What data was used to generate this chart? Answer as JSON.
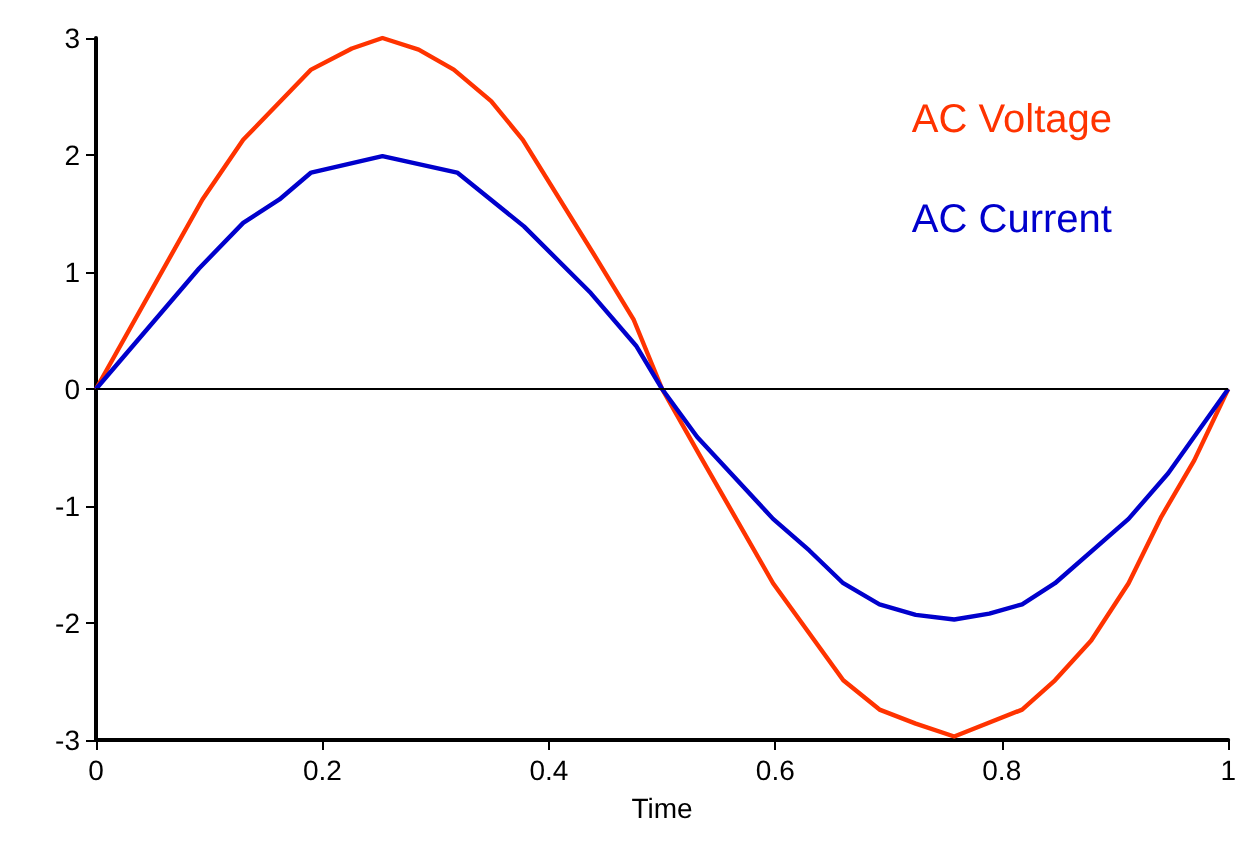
{
  "chart_data": {
    "type": "line",
    "xlabel": "Time",
    "xlim": [
      0,
      1
    ],
    "xticks": [
      0,
      0.2,
      0.4,
      0.6,
      0.8,
      1
    ],
    "ylim": [
      -3,
      3
    ],
    "yticks": [
      -3,
      -2,
      -1,
      0,
      1,
      2,
      3
    ],
    "grid": false,
    "legend": "top right",
    "marker": "none",
    "line_style": "solid",
    "ref_lines": [
      {
        "axis": "y",
        "value": 0,
        "color": "#000000"
      }
    ],
    "series": [
      {
        "name": "AC Voltage",
        "color": "#ff3300",
        "x": [
          0,
          0.094,
          0.13,
          0.19,
          0.226,
          0.253,
          0.285,
          0.316,
          0.349,
          0.377,
          0.443,
          0.475,
          0.5,
          0.534,
          0.598,
          0.66,
          0.692,
          0.724,
          0.758,
          0.818,
          0.847,
          0.879,
          0.912,
          0.941,
          0.97,
          1
        ],
        "values": [
          0,
          1.62,
          2.13,
          2.73,
          2.91,
          3,
          2.9,
          2.73,
          2.46,
          2.13,
          1.1,
          0.59,
          0,
          -0.58,
          -1.66,
          -2.49,
          -2.74,
          -2.86,
          -2.97,
          -2.74,
          -2.49,
          -2.15,
          -1.66,
          -1.09,
          -0.61,
          0
        ]
      },
      {
        "name": "AC Current",
        "color": "#0000cc",
        "x": [
          0,
          0.091,
          0.13,
          0.162,
          0.19,
          0.253,
          0.319,
          0.378,
          0.437,
          0.477,
          0.5,
          0.531,
          0.598,
          0.63,
          0.66,
          0.692,
          0.724,
          0.758,
          0.789,
          0.818,
          0.847,
          0.912,
          0.947,
          1
        ],
        "values": [
          0,
          1.03,
          1.42,
          1.62,
          1.85,
          1.99,
          1.85,
          1.39,
          0.82,
          0.37,
          0,
          -0.41,
          -1.11,
          -1.38,
          -1.66,
          -1.84,
          -1.93,
          -1.97,
          -1.92,
          -1.84,
          -1.66,
          -1.11,
          -0.72,
          0
        ]
      }
    ]
  }
}
